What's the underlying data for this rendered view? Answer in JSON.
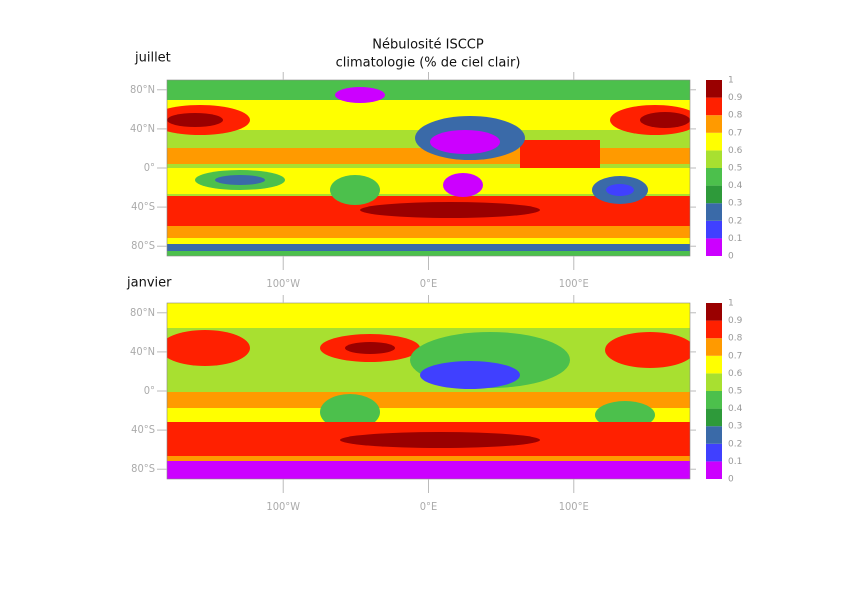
{
  "title": "Nébulosité ISCCP",
  "subtitle": "climatologie (% de ciel clair)",
  "panels": [
    {
      "label": "juillet"
    },
    {
      "label": "janvier"
    }
  ],
  "map": {
    "xlim": [
      -180,
      180
    ],
    "ylim": [
      -90,
      90
    ],
    "xticks": [
      {
        "value": -100,
        "label": "100°W"
      },
      {
        "value": 0,
        "label": "0°E"
      },
      {
        "value": 100,
        "label": "100°E"
      }
    ],
    "yticks": [
      {
        "value": 80,
        "label": "80°N"
      },
      {
        "value": 40,
        "label": "40°N"
      },
      {
        "value": 0,
        "label": "0°"
      },
      {
        "value": -40,
        "label": "40°S"
      },
      {
        "value": -80,
        "label": "80°S"
      }
    ]
  },
  "colorbar": {
    "ticks": [
      0,
      0.1,
      0.2,
      0.3,
      0.4,
      0.5,
      0.6,
      0.7,
      0.8,
      0.9,
      1
    ],
    "colors": [
      "#cc00ff",
      "#4040ff",
      "#3a6aa8",
      "#2e9a3a",
      "#4cc04c",
      "#a8e030",
      "#ffff00",
      "#ff9a00",
      "#ff2000",
      "#9a0000"
    ]
  }
}
